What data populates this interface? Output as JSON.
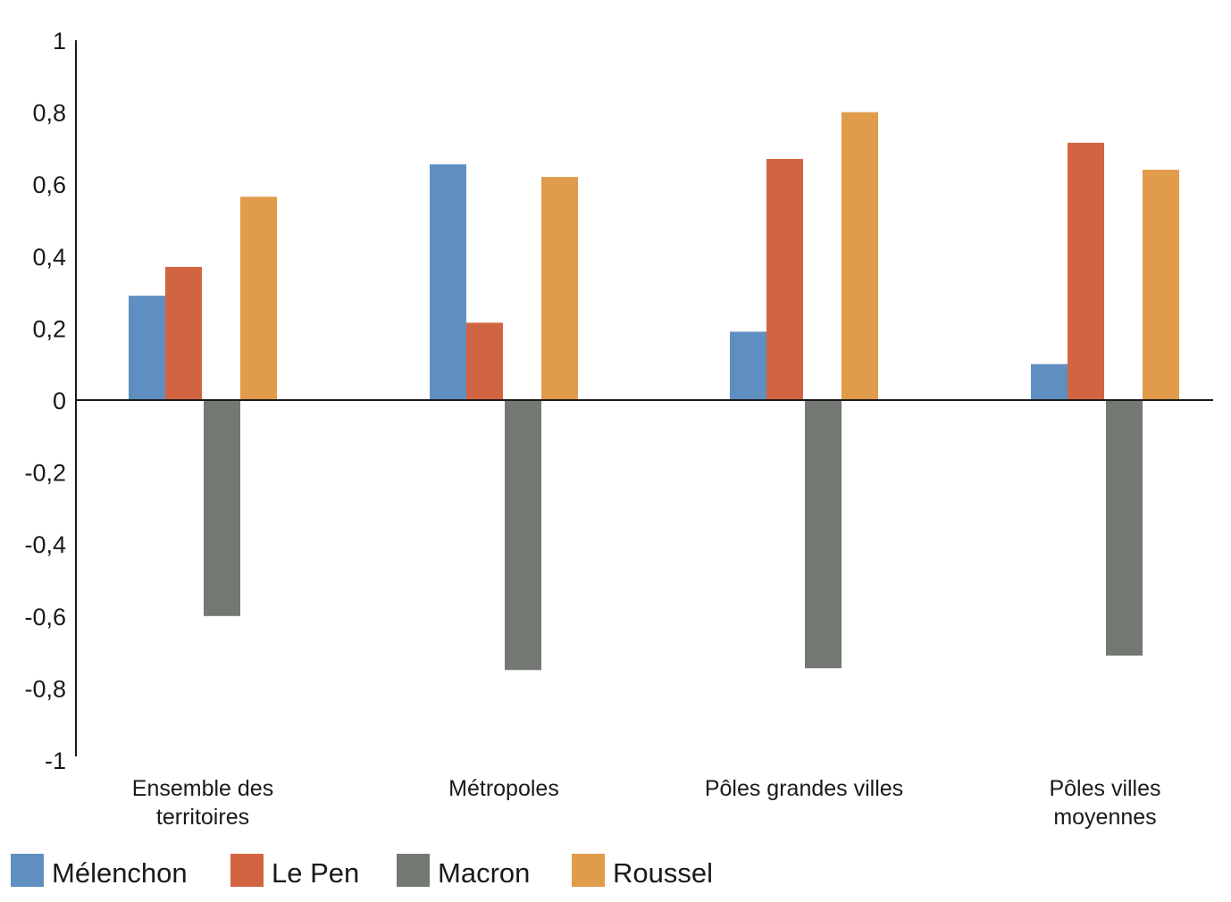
{
  "chart_data": {
    "type": "bar",
    "title": "",
    "xlabel": "",
    "ylabel": "",
    "ylim": [
      -1,
      1
    ],
    "yticks": [
      "1",
      "0,8",
      "0,6",
      "0,4",
      "0,2",
      "0",
      "-0,2",
      "-0,4",
      "-0,6",
      "-0,8",
      "-1"
    ],
    "ytick_values": [
      1,
      0.8,
      0.6,
      0.4,
      0.2,
      0,
      -0.2,
      -0.4,
      -0.6,
      -0.8,
      -1
    ],
    "categories": [
      [
        "Ensemble des",
        "territoires"
      ],
      [
        "Métropoles"
      ],
      [
        "Pôles grandes villes"
      ],
      [
        "Pôles villes",
        "moyennes"
      ]
    ],
    "series": [
      {
        "name": "Mélenchon",
        "color": "#5f8fc0",
        "values": [
          0.29,
          0.655,
          0.19,
          0.1
        ]
      },
      {
        "name": "Le Pen",
        "color": "#d26541",
        "values": [
          0.37,
          0.215,
          0.67,
          0.715
        ]
      },
      {
        "name": "Macron",
        "color": "#747873",
        "values": [
          -0.6,
          -0.75,
          -0.745,
          -0.71
        ]
      },
      {
        "name": "Roussel",
        "color": "#e09b4b",
        "values": [
          0.565,
          0.62,
          0.8,
          0.64
        ]
      }
    ],
    "legend_position": "bottom-left",
    "grid": false
  }
}
